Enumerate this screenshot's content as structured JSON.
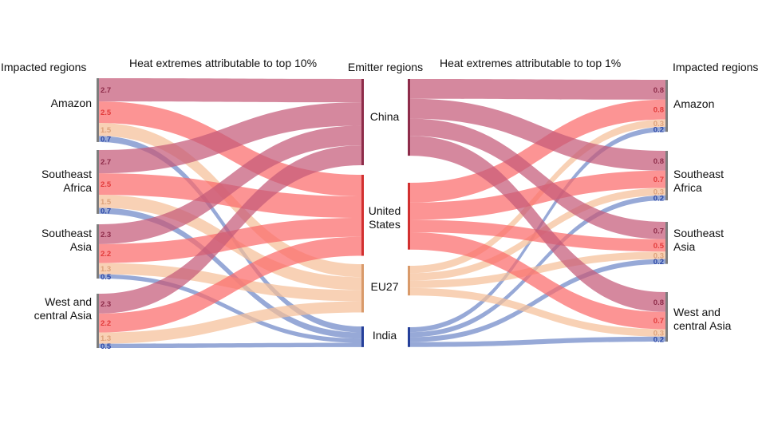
{
  "header": {
    "left_regions_label": "Impacted regions",
    "left_title": "Heat extremes attributable to top 10%",
    "center_label": "Emitter regions",
    "right_title": "Heat extremes attributable to top 1%",
    "right_regions_label": "Impacted regions"
  },
  "chart_data": {
    "type": "sankey",
    "emitters": [
      {
        "key": "china",
        "label": "China",
        "color": "#c55a78",
        "stroke": "#8e2c4a"
      },
      {
        "key": "us",
        "label": "United States",
        "color": "#fb6b6b",
        "stroke": "#d23030"
      },
      {
        "key": "eu",
        "label": "EU27",
        "color": "#f5bf98",
        "stroke": "#d99a6a"
      },
      {
        "key": "india",
        "label": "India",
        "color": "#6f88c8",
        "stroke": "#253f9a"
      }
    ],
    "regions": [
      {
        "key": "amazon",
        "label": "Amazon"
      },
      {
        "key": "se_africa",
        "label": "Southeast Africa"
      },
      {
        "key": "se_asia",
        "label": "Southeast Asia"
      },
      {
        "key": "wc_asia",
        "label": "West and central Asia"
      }
    ],
    "value_label_colors": {
      "china": "#8e2c4a",
      "us": "#e23b3b",
      "eu": "#dda27a",
      "india": "#2a46a6"
    },
    "top10": [
      {
        "region": "amazon",
        "values": {
          "china": "2.7",
          "us": "2.5",
          "eu": "1.5",
          "india": "0.7"
        }
      },
      {
        "region": "se_africa",
        "values": {
          "china": "2.7",
          "us": "2.5",
          "eu": "1.5",
          "india": "0.7"
        }
      },
      {
        "region": "se_asia",
        "values": {
          "china": "2.3",
          "us": "2.2",
          "eu": "1.3",
          "india": "0.5"
        }
      },
      {
        "region": "wc_asia",
        "values": {
          "china": "2.3",
          "us": "2.2",
          "eu": "1.3",
          "india": "0.5"
        }
      }
    ],
    "top1": [
      {
        "region": "amazon",
        "values": {
          "china": "0.8",
          "us": "0.8",
          "eu": "0.3",
          "india": "0.2"
        }
      },
      {
        "region": "se_africa",
        "values": {
          "china": "0.8",
          "us": "0.7",
          "eu": "0.3",
          "india": "0.2"
        }
      },
      {
        "region": "se_asia",
        "values": {
          "china": "0.7",
          "us": "0.5",
          "eu": "0.3",
          "india": "0.2"
        }
      },
      {
        "region": "wc_asia",
        "values": {
          "china": "0.8",
          "us": "0.7",
          "eu": "0.3",
          "india": "0.2"
        }
      }
    ]
  }
}
